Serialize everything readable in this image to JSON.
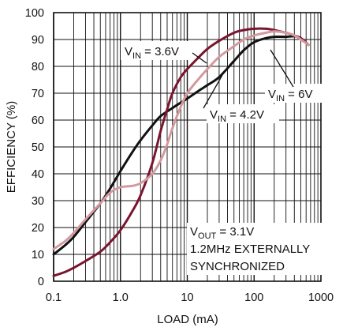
{
  "chart_data": {
    "type": "line",
    "xlabel": "LOAD (mA)",
    "ylabel": "EFFICIENCY (%)",
    "xscale": "log",
    "xlim": [
      0.1,
      1000
    ],
    "ylim": [
      0,
      100
    ],
    "grid": true,
    "x_ticks": [
      "0.1",
      "1.0",
      "10",
      "100",
      "1000"
    ],
    "y_ticks": [
      "0",
      "10",
      "20",
      "30",
      "40",
      "50",
      "60",
      "70",
      "80",
      "90",
      "100"
    ],
    "series": [
      {
        "name": "VIN = 6V",
        "color": "#111111",
        "x": [
          0.1,
          0.15,
          0.2,
          0.3,
          0.5,
          0.7,
          1.0,
          1.5,
          2,
          3,
          4,
          6,
          8,
          10,
          15,
          20,
          30,
          50,
          70,
          100,
          150,
          200,
          300,
          400,
          500,
          650
        ],
        "y": [
          10,
          13.5,
          16.5,
          22,
          29,
          34.5,
          41,
          48,
          52.5,
          58,
          61.5,
          64.5,
          66.5,
          68,
          71,
          73,
          76,
          82,
          86,
          89,
          90.5,
          91,
          91,
          91.2,
          90.5,
          88
        ]
      },
      {
        "name": "VIN = 3.6V",
        "color": "#7a1530",
        "x": [
          0.1,
          0.15,
          0.2,
          0.3,
          0.5,
          0.7,
          1.0,
          1.5,
          2,
          3,
          4,
          5,
          6,
          8,
          10,
          15,
          20,
          30,
          50,
          70,
          100,
          150,
          200,
          300,
          400,
          500,
          650
        ],
        "y": [
          2,
          3.5,
          5,
          7.5,
          11,
          14.5,
          19,
          26,
          32,
          44,
          56,
          64,
          70,
          76,
          79,
          83.5,
          86.5,
          89.5,
          92.5,
          93.5,
          94,
          94,
          93.5,
          92.5,
          91.5,
          90.5,
          88
        ]
      },
      {
        "name": "VIN = 4.2V",
        "color": "#d4999e",
        "x": [
          0.1,
          0.15,
          0.2,
          0.3,
          0.5,
          0.7,
          1.0,
          1.5,
          2,
          3,
          4,
          5,
          6,
          8,
          10,
          15,
          20,
          30,
          50,
          70,
          100,
          150,
          200,
          300,
          400,
          500,
          650
        ],
        "y": [
          12,
          15,
          18,
          23,
          29,
          33,
          35,
          35.5,
          36.5,
          40,
          45,
          51,
          57,
          65,
          70,
          75.5,
          79,
          83.5,
          87.5,
          90,
          91.5,
          92.5,
          93,
          92.5,
          91.5,
          90,
          88
        ]
      }
    ],
    "annotations": {
      "vin36": {
        "main": "V",
        "sub": "IN",
        "rest": " = 3.6V"
      },
      "vin42": {
        "main": "V",
        "sub": "IN",
        "rest": " = 4.2V"
      },
      "vin6": {
        "main": "V",
        "sub": "IN",
        "rest": " = 6V"
      },
      "vout": {
        "main": "V",
        "sub": "OUT",
        "rest": " = 3.1V"
      },
      "note_line1": "1.2MHz EXTERNALLY",
      "note_line2": "SYNCHRONIZED"
    }
  }
}
